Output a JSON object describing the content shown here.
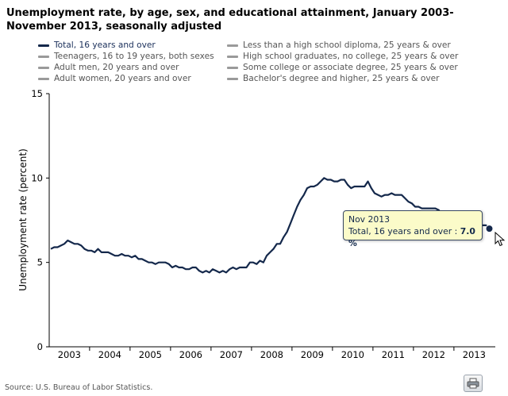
{
  "title": "Unemployment rate, by age, sex, and educational attainment, January 2003-November 2013, seasonally adjusted",
  "legend": [
    {
      "label": "Total, 16 years and over",
      "active": true
    },
    {
      "label": "Teenagers, 16 to 19 years, both sexes",
      "active": false
    },
    {
      "label": "Adult men, 20 years and over",
      "active": false
    },
    {
      "label": "Adult women, 20 years and over",
      "active": false
    },
    {
      "label": "Less than a high school diploma, 25 years & over",
      "active": false
    },
    {
      "label": "High school graduates, no college, 25 years & over",
      "active": false
    },
    {
      "label": "Some college or associate degree, 25 years & over",
      "active": false
    },
    {
      "label": "Bachelor's degree and higher, 25 years & over",
      "active": false
    }
  ],
  "tooltip": {
    "date": "Nov 2013",
    "series": "Total, 16 years and over :",
    "value": "7.0 %"
  },
  "source": "Source: U.S. Bureau of Labor Statistics.",
  "icons": {
    "print": "print-icon",
    "cursor": "mouse-pointer-icon"
  },
  "colors": {
    "line": "#14284b",
    "axis": "#000000",
    "inactive_legend": "#9a9a9a"
  },
  "chart_data": {
    "type": "line",
    "ylabel": "Unemployment rate (percent)",
    "xlabel": "",
    "ylim": [
      0,
      15
    ],
    "yticks": [
      0,
      5,
      10,
      15
    ],
    "xlim": [
      "2003-01",
      "2013-11"
    ],
    "xtick_labels": [
      "2003",
      "2004",
      "2005",
      "2006",
      "2007",
      "2008",
      "2009",
      "2010",
      "2011",
      "2012",
      "2013"
    ],
    "grid": false,
    "legend_position": "top",
    "series": [
      {
        "name": "Total, 16 years and over",
        "start": "2003-01",
        "frequency": "monthly",
        "values": [
          5.8,
          5.9,
          5.9,
          6.0,
          6.1,
          6.3,
          6.2,
          6.1,
          6.1,
          6.0,
          5.8,
          5.7,
          5.7,
          5.6,
          5.8,
          5.6,
          5.6,
          5.6,
          5.5,
          5.4,
          5.4,
          5.5,
          5.4,
          5.4,
          5.3,
          5.4,
          5.2,
          5.2,
          5.1,
          5.0,
          5.0,
          4.9,
          5.0,
          5.0,
          5.0,
          4.9,
          4.7,
          4.8,
          4.7,
          4.7,
          4.6,
          4.6,
          4.7,
          4.7,
          4.5,
          4.4,
          4.5,
          4.4,
          4.6,
          4.5,
          4.4,
          4.5,
          4.4,
          4.6,
          4.7,
          4.6,
          4.7,
          4.7,
          4.7,
          5.0,
          5.0,
          4.9,
          5.1,
          5.0,
          5.4,
          5.6,
          5.8,
          6.1,
          6.1,
          6.5,
          6.8,
          7.3,
          7.8,
          8.3,
          8.7,
          9.0,
          9.4,
          9.5,
          9.5,
          9.6,
          9.8,
          10.0,
          9.9,
          9.9,
          9.8,
          9.8,
          9.9,
          9.9,
          9.6,
          9.4,
          9.5,
          9.5,
          9.5,
          9.5,
          9.8,
          9.4,
          9.1,
          9.0,
          8.9,
          9.0,
          9.0,
          9.1,
          9.0,
          9.0,
          9.0,
          8.8,
          8.6,
          8.5,
          8.3,
          8.3,
          8.2,
          8.2,
          8.2,
          8.2,
          8.2,
          8.1,
          7.8,
          7.8,
          7.8,
          7.9,
          7.9,
          7.7,
          7.5,
          7.6,
          7.5,
          7.5,
          7.3,
          7.2,
          7.2,
          7.2,
          7.0
        ]
      }
    ]
  }
}
